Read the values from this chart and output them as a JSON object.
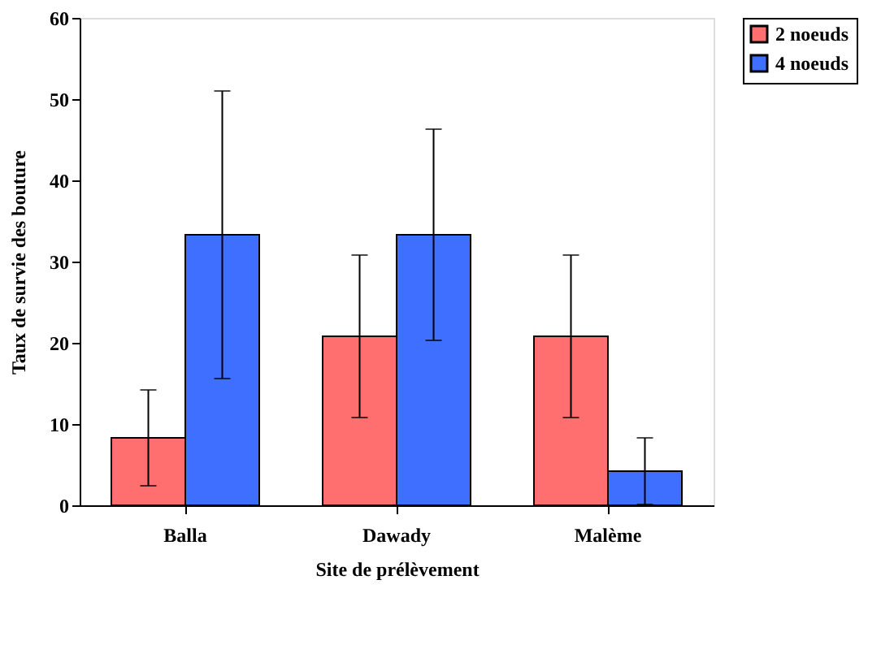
{
  "chart_data": {
    "type": "bar",
    "xlabel": "Site de prélèvement",
    "ylabel": "Taux de survie des bouture",
    "categories": [
      "Balla",
      "Dawady",
      "Malème"
    ],
    "series": [
      {
        "name": "2 noeuds",
        "color": "#ff6f6f",
        "values": [
          8.3,
          20.8,
          20.8
        ],
        "errors": [
          5.9,
          10,
          10
        ]
      },
      {
        "name": "4 noeuds",
        "color": "#3f6fff",
        "values": [
          33.3,
          33.3,
          4.2
        ],
        "errors": [
          17.7,
          13,
          4.1
        ]
      }
    ],
    "ylim": [
      0,
      60
    ],
    "yticks": [
      0,
      10,
      20,
      30,
      40,
      50,
      60
    ],
    "grid": false,
    "legend": "top right"
  }
}
